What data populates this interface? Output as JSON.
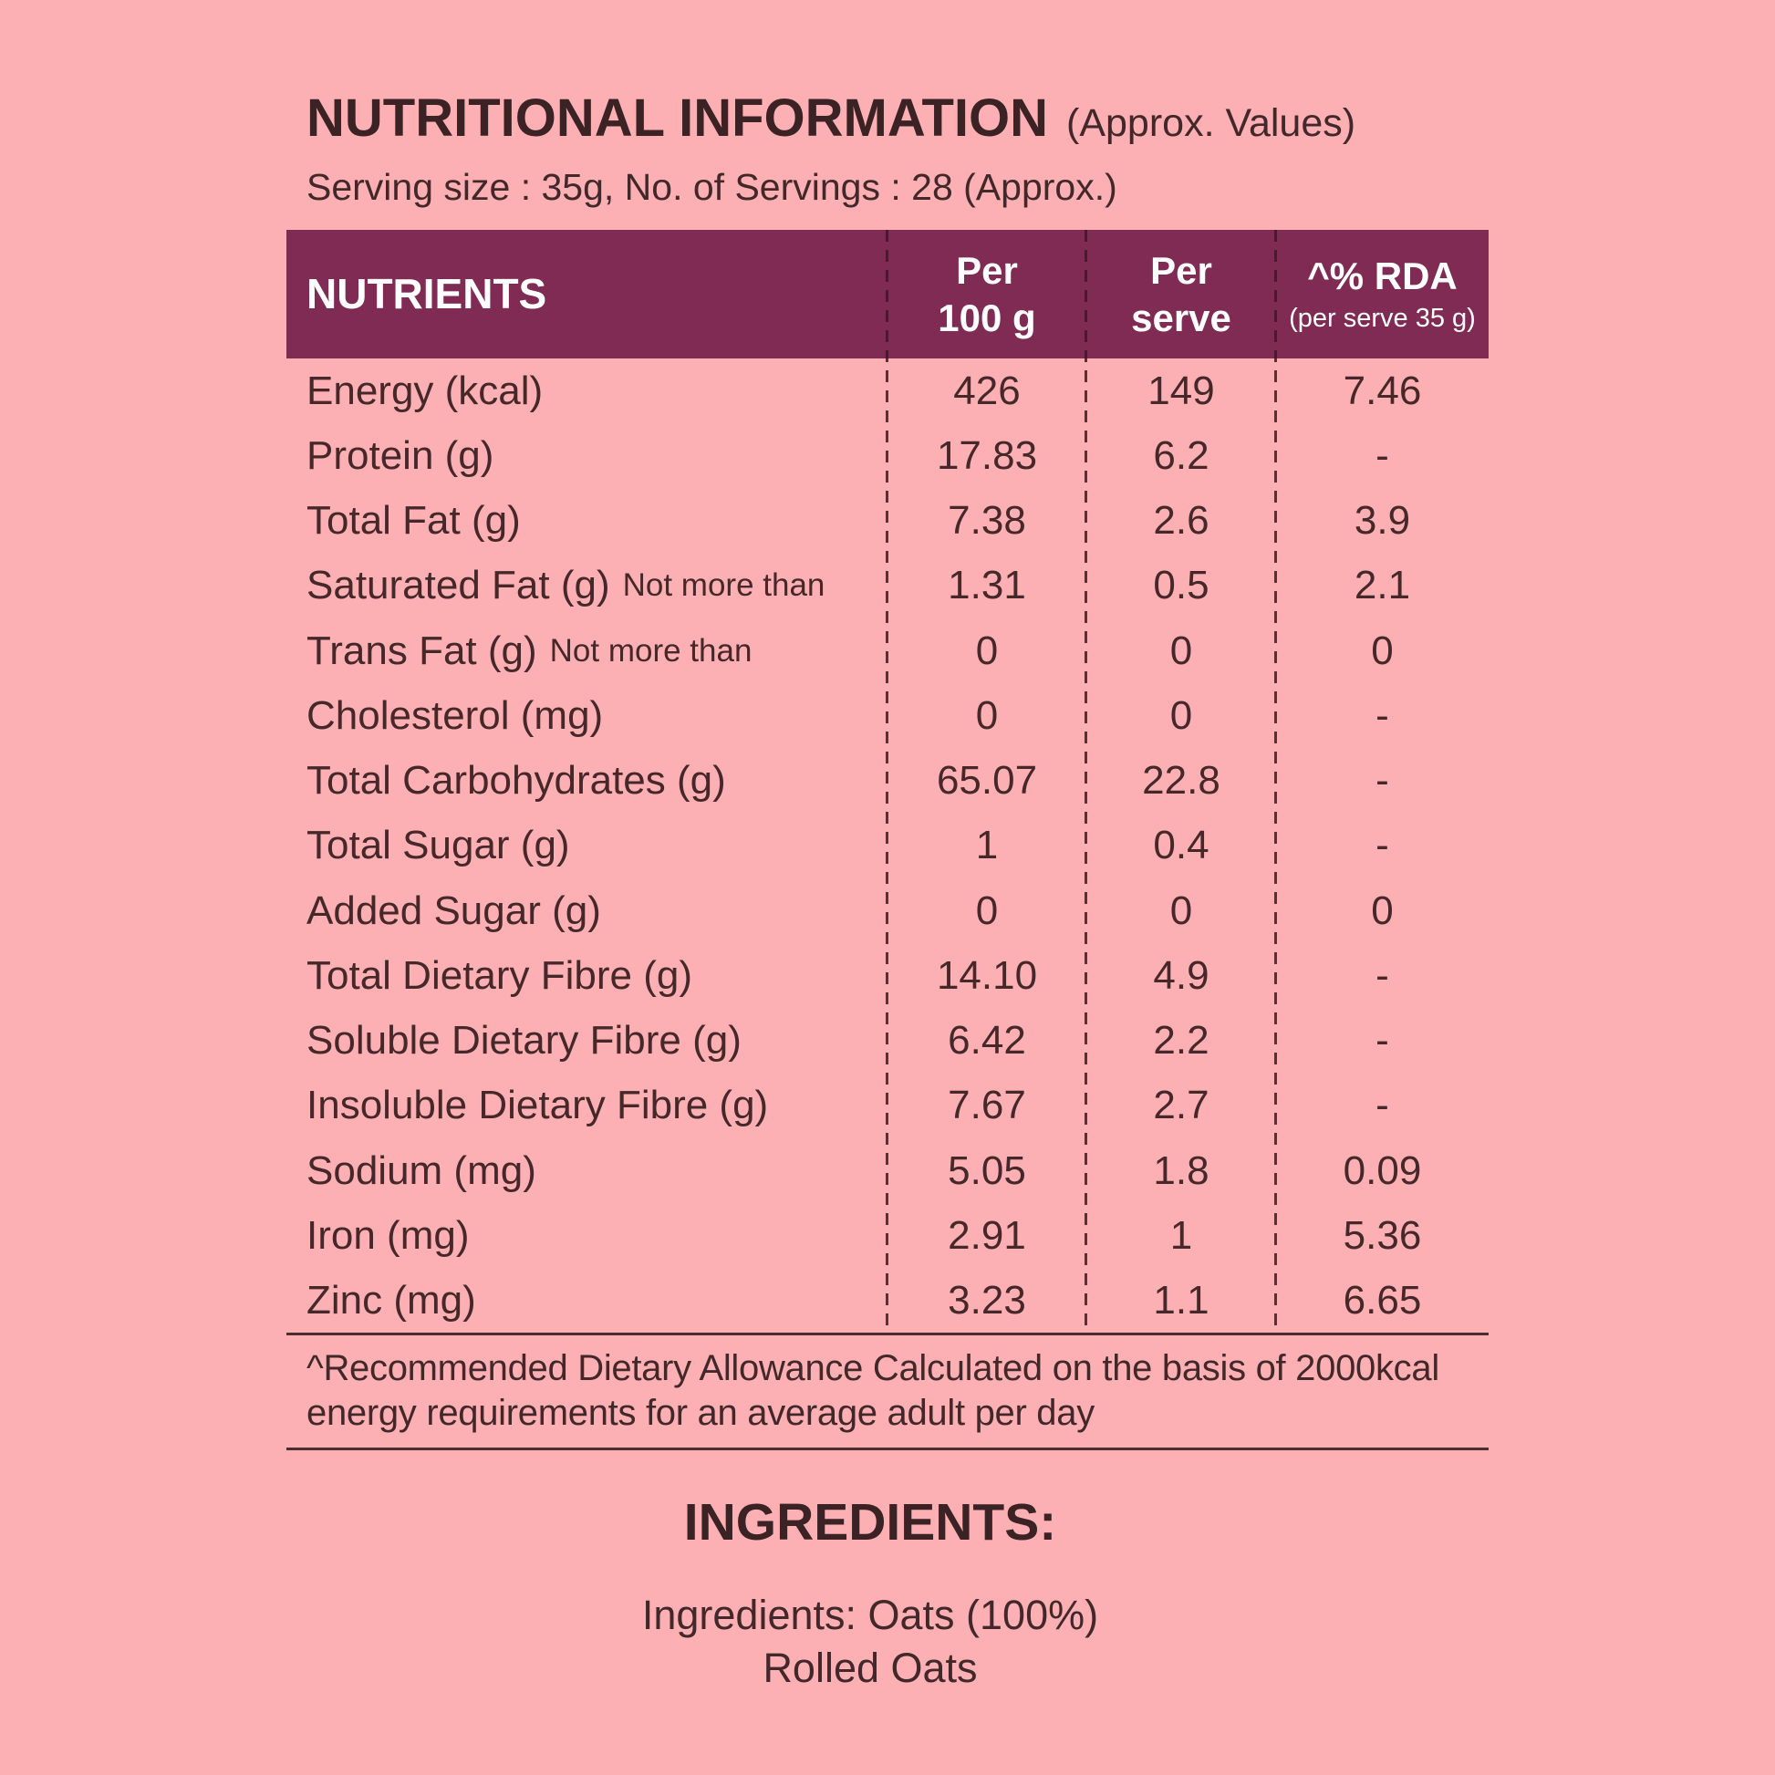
{
  "page": {
    "background_color": "#fcb0b3",
    "accent_color": "#802b54",
    "text_color": "#46282b"
  },
  "header": {
    "title": "NUTRITIONAL INFORMATION",
    "title_suffix": "(Approx. Values)",
    "serving_line": "Serving size : 35g, No. of Servings : 28 (Approx.)"
  },
  "table": {
    "columns": {
      "nutrients": "NUTRIENTS",
      "per100_line1": "Per",
      "per100_line2": "100 g",
      "perserve_line1": "Per",
      "perserve_line2": "serve",
      "rda_line1": "^% RDA",
      "rda_line2": "(per serve 35 g)"
    },
    "rows": [
      {
        "name": "Energy (kcal)",
        "note": "",
        "per100": "426",
        "perServe": "149",
        "rda": "7.46"
      },
      {
        "name": "Protein (g)",
        "note": "",
        "per100": "17.83",
        "perServe": "6.2",
        "rda": "-"
      },
      {
        "name": "Total Fat (g)",
        "note": "",
        "per100": "7.38",
        "perServe": "2.6",
        "rda": "3.9"
      },
      {
        "name": "Saturated Fat (g)",
        "note": "Not more than",
        "per100": "1.31",
        "perServe": "0.5",
        "rda": "2.1"
      },
      {
        "name": "Trans Fat (g)",
        "note": "Not more than",
        "per100": "0",
        "perServe": "0",
        "rda": "0"
      },
      {
        "name": "Cholesterol (mg)",
        "note": "",
        "per100": "0",
        "perServe": "0",
        "rda": "-"
      },
      {
        "name": "Total Carbohydrates (g)",
        "note": "",
        "per100": "65.07",
        "perServe": "22.8",
        "rda": "-"
      },
      {
        "name": "Total Sugar (g)",
        "note": "",
        "per100": "1",
        "perServe": "0.4",
        "rda": "-"
      },
      {
        "name": "Added Sugar (g)",
        "note": "",
        "per100": "0",
        "perServe": "0",
        "rda": "0"
      },
      {
        "name": "Total Dietary Fibre (g)",
        "note": "",
        "per100": "14.10",
        "perServe": "4.9",
        "rda": "-"
      },
      {
        "name": "Soluble Dietary Fibre (g)",
        "note": "",
        "per100": "6.42",
        "perServe": "2.2",
        "rda": "-"
      },
      {
        "name": "Insoluble Dietary Fibre (g)",
        "note": "",
        "per100": "7.67",
        "perServe": "2.7",
        "rda": "-"
      },
      {
        "name": "Sodium (mg)",
        "note": "",
        "per100": "5.05",
        "perServe": "1.8",
        "rda": "0.09"
      },
      {
        "name": "Iron (mg)",
        "note": "",
        "per100": "2.91",
        "perServe": "1",
        "rda": "5.36"
      },
      {
        "name": "Zinc (mg)",
        "note": "",
        "per100": "3.23",
        "perServe": "1.1",
        "rda": "6.65"
      }
    ]
  },
  "footnote": {
    "line1": "^Recommended Dietary Allowance Calculated on the basis of 2000kcal",
    "line2": "energy requirements for an average adult per day"
  },
  "ingredients": {
    "heading": "INGREDIENTS:",
    "line1": "Ingredients: Oats (100%)",
    "line2": "Rolled Oats"
  }
}
